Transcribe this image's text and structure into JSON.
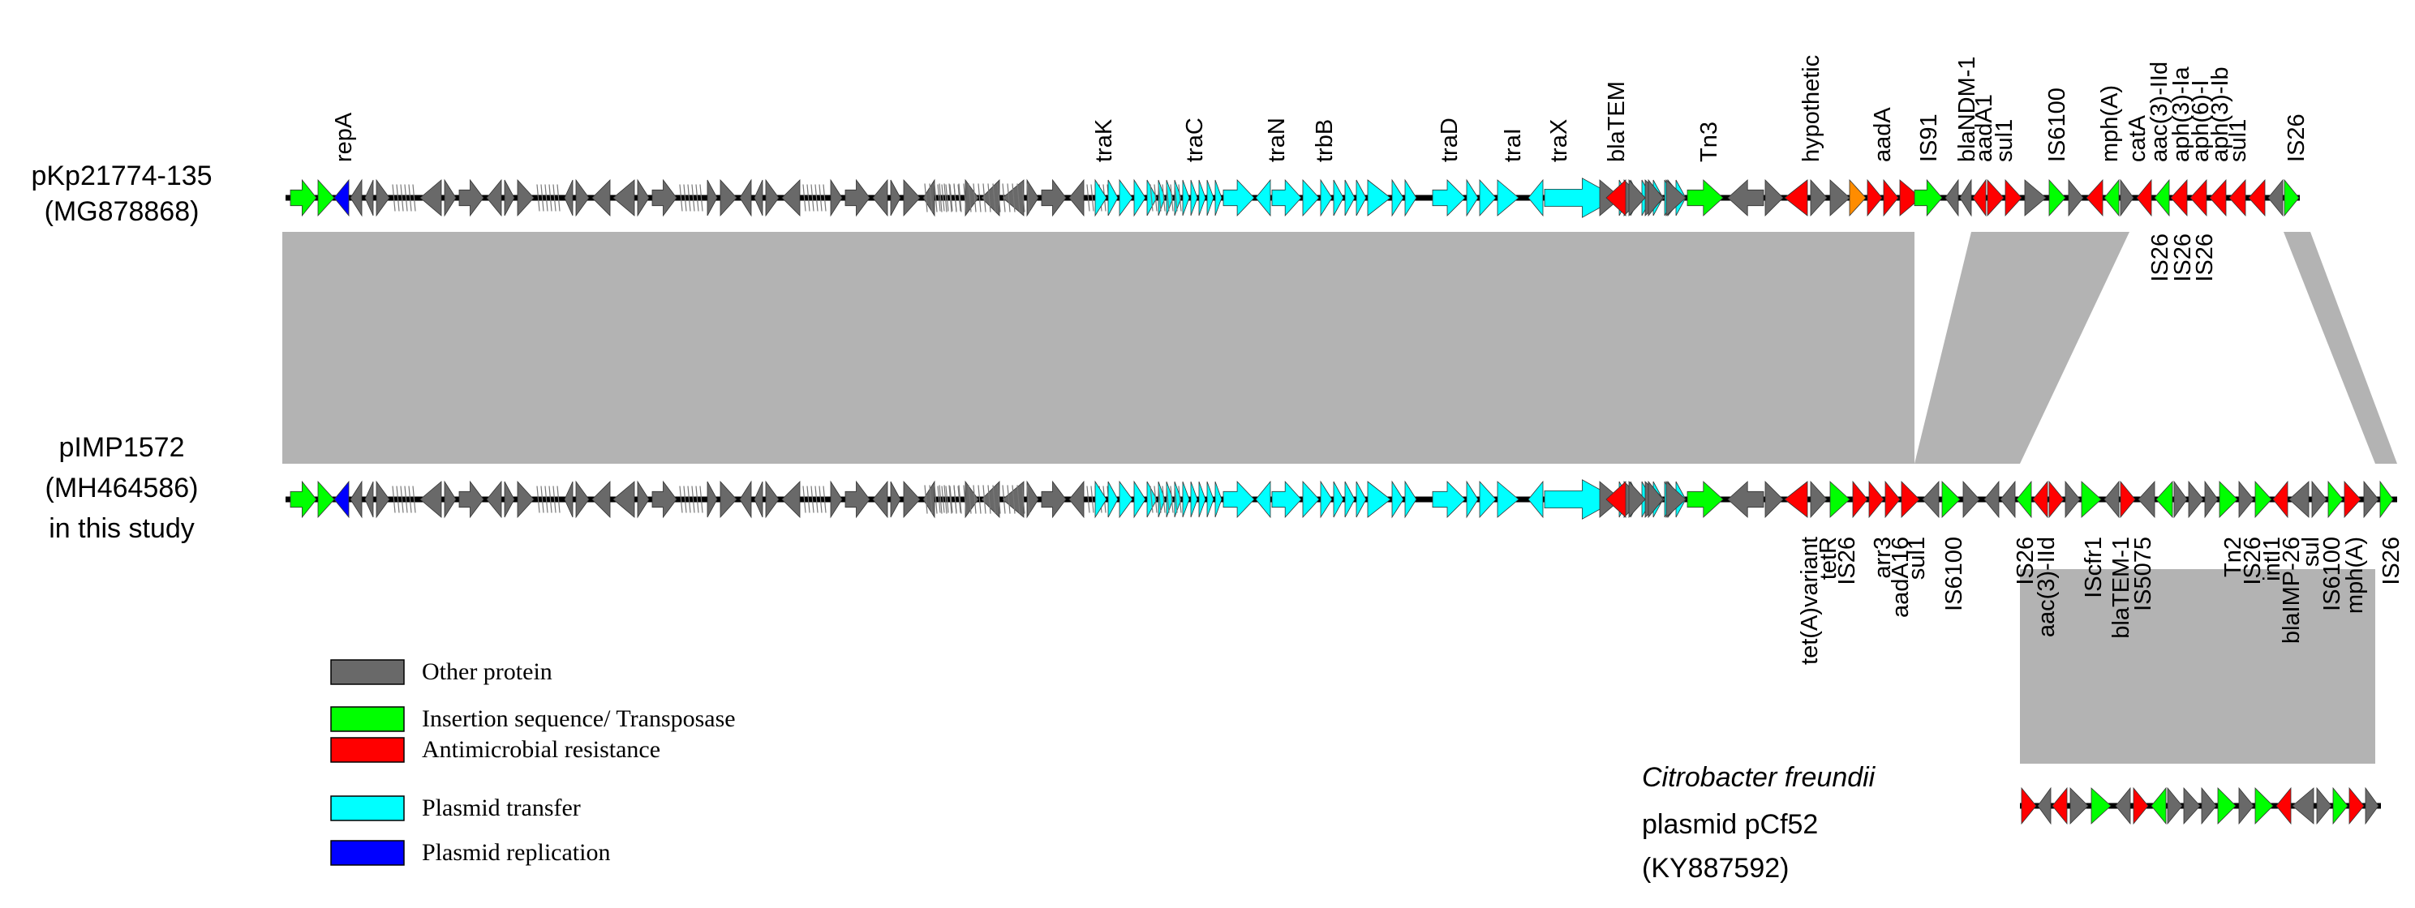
{
  "colors": {
    "other": "#696969",
    "insertion": "#00ff00",
    "resistance": "#ff0000",
    "transfer": "#00ffff",
    "replication": "#0000ff",
    "orange": "#ff8c00",
    "shade": "#b3b3b3",
    "backbone": "#000000"
  },
  "plasmids": {
    "top": {
      "name": "pKp21774-135",
      "accession": "(MG878868)"
    },
    "middle": {
      "name": "pIMP1572",
      "accession": "(MH464586)",
      "note": "in this study"
    },
    "bottom": {
      "species": "Citrobacter freundii",
      "name": "plasmid pCf52",
      "accession": "(KY887592)"
    }
  },
  "legend": [
    {
      "key": "other",
      "label": "Other protein"
    },
    {
      "key": "insertion",
      "label": "Insertion sequence/ Transposase"
    },
    {
      "key": "resistance",
      "label": "Antimicrobial resistance"
    },
    {
      "key": "transfer",
      "label": "Plasmid transfer"
    },
    {
      "key": "replication",
      "label": "Plasmid replication"
    }
  ],
  "gene_labels": {
    "top_above": [
      "repA",
      "traK",
      "traC",
      "traN",
      "trbB",
      "traD",
      "traI",
      "traX",
      "blaTEM",
      "Tn3",
      "hypothetic",
      "aadA",
      "IS91",
      "blaNDM-1",
      "aadA1",
      "sul1",
      "IS6100",
      "mph(A)",
      "catA",
      "aac(3)-IId",
      "aph(3)-Ia",
      "aph(6)-I",
      "aph(3)-Ib",
      "sul1",
      "IS26"
    ],
    "top_below": [
      "IS26",
      "IS26",
      "IS26"
    ],
    "middle_below": [
      "tet(A)variant",
      "tetR",
      "IS26",
      "arr3",
      "aadA16",
      "sul1",
      "IS6100",
      "IS26",
      "aac(3)-IId",
      "IScfr1",
      "blaTEM-1",
      "IS5075",
      "Tn2",
      "IS26",
      "intI1",
      "blaIMP-26",
      "sul",
      "IS6100",
      "mph(A)",
      "IS26"
    ]
  }
}
